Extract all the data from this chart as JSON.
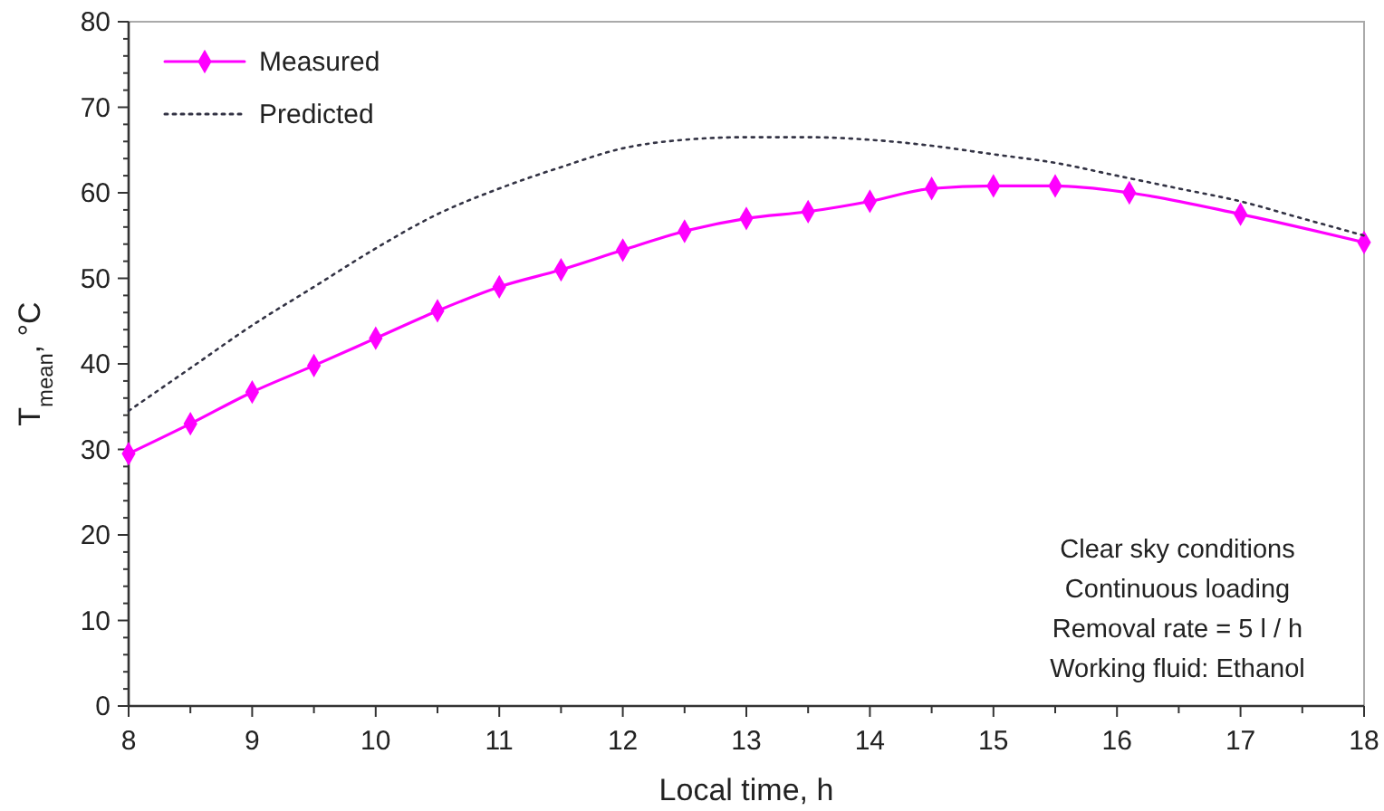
{
  "chart_data": {
    "type": "line",
    "xlabel": "Local time, h",
    "ylabel": "T$_{mean}$, °C",
    "xlim": [
      8,
      18
    ],
    "xticks": [
      8,
      {
        "value": 8.5,
        "label": null
      },
      9,
      {
        "value": 9.5,
        "label": null
      },
      10,
      {
        "value": 10.5,
        "label": null
      },
      11,
      {
        "value": 11.5,
        "label": null
      },
      12,
      {
        "value": 12.5,
        "label": null
      },
      13,
      {
        "value": 13.5,
        "label": null
      },
      14,
      {
        "value": 14.5,
        "label": null
      },
      15,
      {
        "value": 15.5,
        "label": null
      },
      16,
      {
        "value": 16.5,
        "label": null
      },
      17,
      {
        "value": 17.5,
        "label": null
      },
      18
    ],
    "ylim": [
      0,
      80
    ],
    "yticks": [
      0,
      10,
      20,
      30,
      40,
      50,
      60,
      70,
      80
    ],
    "grid": false,
    "legend": "top left",
    "series": [
      {
        "name": "Measured",
        "color": "#ff00ff",
        "marker": "diamond",
        "line_style": "solid",
        "x": [
          8,
          8.5,
          9,
          9.5,
          10,
          10.5,
          11,
          11.5,
          12,
          12.5,
          13,
          13.5,
          14,
          14.5,
          15,
          15.5,
          16.1,
          17,
          18
        ],
        "values": [
          29.5,
          33,
          36.7,
          39.8,
          43,
          46.2,
          49,
          51,
          53.3,
          55.5,
          57,
          57.8,
          59,
          60.5,
          60.8,
          60.8,
          60,
          57.5,
          54.2
        ]
      },
      {
        "name": "Predicted",
        "color": "#333344",
        "marker": "none",
        "line_style": "dotted",
        "x": [
          8,
          8.5,
          9,
          9.5,
          10,
          10.5,
          11,
          11.5,
          12,
          12.5,
          13,
          13.5,
          14,
          14.5,
          15,
          15.5,
          16,
          16.5,
          17,
          17.5,
          18
        ],
        "values": [
          34.5,
          39.5,
          44.5,
          49,
          53.5,
          57.5,
          60.5,
          63,
          65.2,
          66.2,
          66.5,
          66.5,
          66.2,
          65.5,
          64.5,
          63.5,
          62,
          60.5,
          59,
          57,
          55
        ]
      }
    ],
    "annotations": [
      "Clear sky conditions",
      "Continuous loading",
      "Removal rate = 5 l / h",
      "Working fluid: Ethanol"
    ]
  }
}
